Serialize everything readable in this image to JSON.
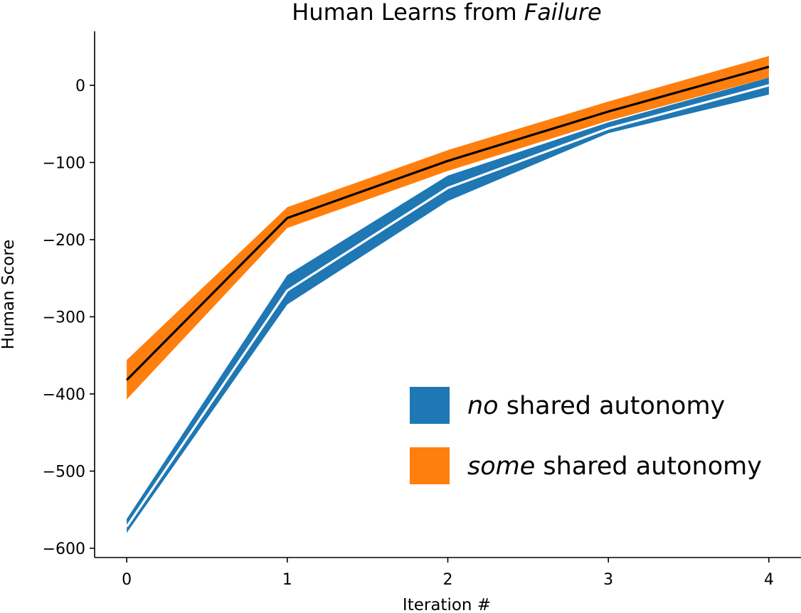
{
  "chart_data": {
    "type": "line",
    "title_plain": "Human Learns from ",
    "title_emph": "Failure",
    "xlabel": "Iteration #",
    "ylabel": "Human Score",
    "x": [
      0,
      1,
      2,
      3,
      4
    ],
    "xlim": [
      -0.2,
      4.2
    ],
    "ylim": [
      -612,
      70
    ],
    "yticks": [
      0,
      -100,
      -200,
      -300,
      -400,
      -500,
      -600
    ],
    "ytick_labels": [
      "0",
      "−100",
      "−200",
      "−300",
      "−400",
      "−500",
      "−600"
    ],
    "xtick_labels": [
      "0",
      "1",
      "2",
      "3",
      "4"
    ],
    "grid": false,
    "legend_position": "lower-right",
    "series": [
      {
        "key": "no",
        "legend_emph": "no",
        "legend_rest": " shared autonomy",
        "color": "#1f77b4",
        "mean_color": "#ffffff",
        "mean": [
          -572,
          -266,
          -133,
          -56,
          0
        ],
        "lower": [
          -580,
          -284,
          -150,
          -62,
          -12
        ],
        "upper": [
          -562,
          -246,
          -117,
          -48,
          10
        ]
      },
      {
        "key": "some",
        "legend_emph": "some",
        "legend_rest": " shared autonomy",
        "color": "#ff7f0e",
        "mean_color": "#000000",
        "mean": [
          -382,
          -172,
          -98,
          -34,
          24
        ],
        "lower": [
          -407,
          -185,
          -111,
          -46,
          10
        ],
        "upper": [
          -356,
          -158,
          -84,
          -21,
          38
        ]
      }
    ]
  }
}
